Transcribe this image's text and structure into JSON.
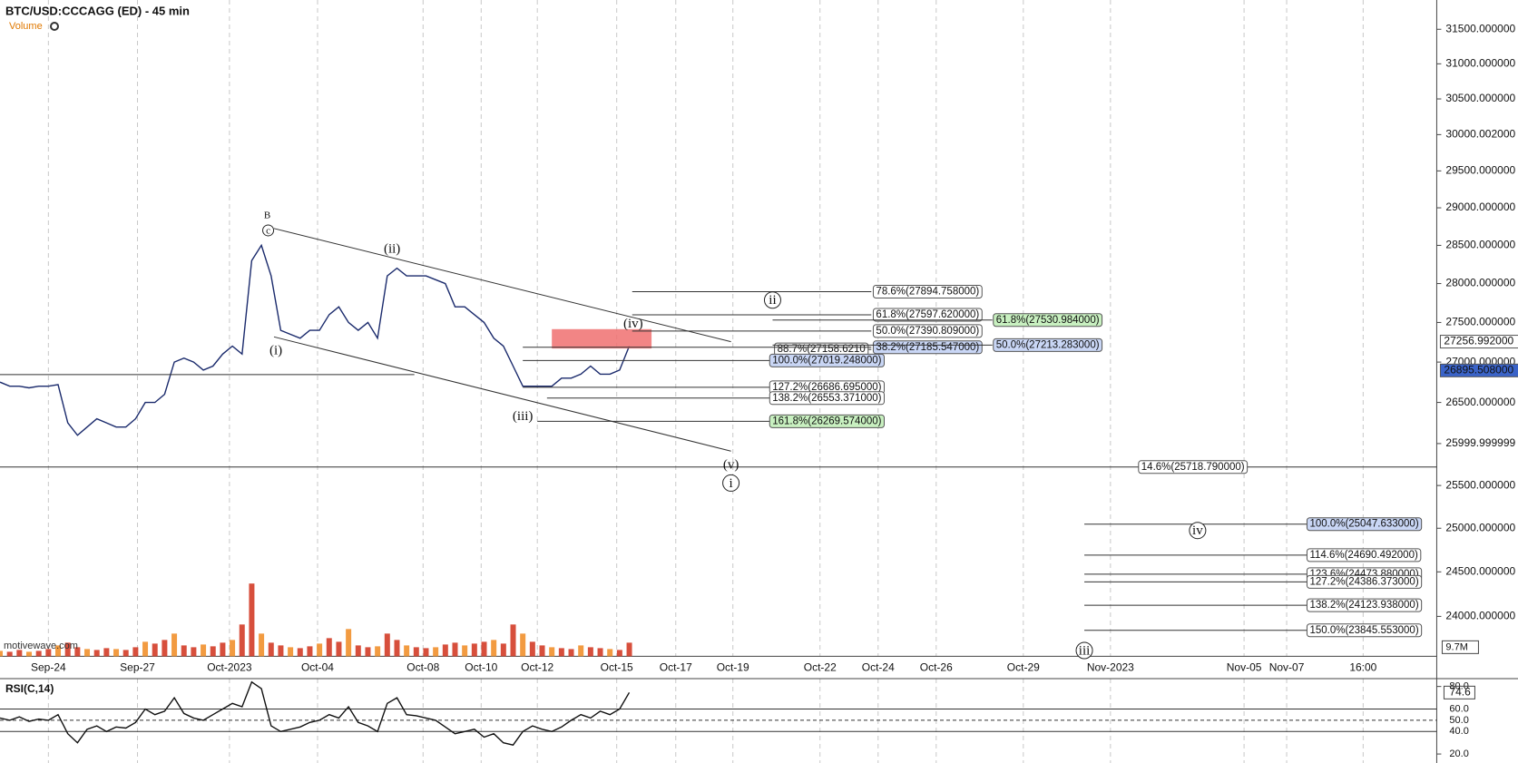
{
  "chart_data": [
    {
      "type": "line",
      "title": "BTC/USD:CCCAGG (ED) - 45 min",
      "subtitle": "Volume",
      "watermark": "motivewave.com",
      "log_scale": true,
      "color": "#1a2a6c",
      "values": [
        26750,
        26700,
        26700,
        26680,
        26700,
        26700,
        26720,
        26250,
        26100,
        26200,
        26300,
        26250,
        26200,
        26200,
        26300,
        26500,
        26500,
        26600,
        27000,
        27050,
        27000,
        26900,
        26950,
        27100,
        27200,
        27100,
        28300,
        28500,
        28100,
        27400,
        27350,
        27300,
        27400,
        27400,
        27600,
        27700,
        27500,
        27400,
        27500,
        27300,
        28100,
        28200,
        28100,
        28100,
        28100,
        28050,
        28000,
        27700,
        27700,
        27600,
        27500,
        27300,
        27200,
        26950,
        26700,
        26700,
        26700,
        26700,
        26800,
        26800,
        26850,
        26950,
        26850,
        26850,
        26900,
        27200
      ],
      "ylim": [
        23560,
        31930
      ],
      "yticks": [
        {
          "value": 24000,
          "label": "24000.000000"
        },
        {
          "value": 24500,
          "label": "24500.000000"
        },
        {
          "value": 25000,
          "label": "25000.000000"
        },
        {
          "value": 25500,
          "label": "25500.000000"
        },
        {
          "value": 26000,
          "label": "25999.999999"
        },
        {
          "value": 26500,
          "label": "26500.000000"
        },
        {
          "value": 27000,
          "label": "27000.000000"
        },
        {
          "value": 27500,
          "label": "27500.000000"
        },
        {
          "value": 28000,
          "label": "28000.000000"
        },
        {
          "value": 28500,
          "label": "28500.000000"
        },
        {
          "value": 29000,
          "label": "29000.000000"
        },
        {
          "value": 29500,
          "label": "29500.000000"
        },
        {
          "value": 30000,
          "label": "30000.002000"
        },
        {
          "value": 30500,
          "label": "30500.000000"
        },
        {
          "value": 31000,
          "label": "31000.000000"
        },
        {
          "value": 31500,
          "label": "31500.000000"
        }
      ],
      "xticks": [
        "Sep-24",
        "Sep-27",
        "Oct-2023",
        "Oct-04",
        "Oct-08",
        "Oct-10",
        "Oct-12",
        "Oct-15",
        "Oct-17",
        "Oct-19",
        "Oct-22",
        "Oct-24",
        "Oct-26",
        "Oct-29",
        "Nov-2023",
        "Nov-05",
        "Nov-07",
        "16:00"
      ],
      "price_markers": [
        {
          "value": 27256.992,
          "label": "27256.992000",
          "color": "#ffffff"
        },
        {
          "value": 26895.508,
          "label": "26895.508000",
          "color": "#3a63c8"
        }
      ],
      "fib_levels": [
        {
          "value": 27894.758,
          "label": "78.6%(27894.758000)",
          "color": "#ffffff"
        },
        {
          "value": 27597.62,
          "label": "61.8%(27597.620000)",
          "color": "#ffffff"
        },
        {
          "value": 27390.809,
          "label": "50.0%(27390.809000)",
          "color": "#ffffff"
        },
        {
          "value": 27158.621,
          "label": "88.7%(27158.6210",
          "color": "#ffffff"
        },
        {
          "value": 27185.547,
          "label": "38.2%(27185.547000)",
          "color": "#c9d6f5"
        },
        {
          "value": 27019.248,
          "label": "100.0%(27019.248000)",
          "color": "#c9d6f5"
        },
        {
          "value": 26686.695,
          "label": "127.2%(26686.695000)",
          "color": "#ffffff"
        },
        {
          "value": 26553.371,
          "label": "138.2%(26553.371000)",
          "color": "#ffffff"
        },
        {
          "value": 26269.574,
          "label": "161.8%(26269.574000)",
          "color": "#c8f0c0"
        },
        {
          "value": 27530.984,
          "label": "61.8%(27530.984000)",
          "color": "#c8f0c0"
        },
        {
          "value": 27213.283,
          "label": "50.0%(27213.283000)",
          "color": "#c9d6f5"
        },
        {
          "value": 25718.79,
          "label": "14.6%(25718.790000)",
          "color": "#ffffff"
        },
        {
          "value": 25047.633,
          "label": "100.0%(25047.633000)",
          "color": "#c9d6f5"
        },
        {
          "value": 24690.492,
          "label": "114.6%(24690.492000)",
          "color": "#ffffff"
        },
        {
          "value": 24473.88,
          "label": "123.6%(24473.880000)",
          "color": "#ffffff"
        },
        {
          "value": 24386.373,
          "label": "127.2%(24386.373000)",
          "color": "#ffffff"
        },
        {
          "value": 24123.938,
          "label": "138.2%(24123.938000)",
          "color": "#ffffff"
        },
        {
          "value": 23845.553,
          "label": "150.0%(23845.553000)",
          "color": "#ffffff"
        }
      ],
      "wave_labels": [
        {
          "label": "B",
          "circled": false
        },
        {
          "label": "c",
          "circled": true
        },
        {
          "label": "(i)",
          "circled": false
        },
        {
          "label": "(ii)",
          "circled": false
        },
        {
          "label": "(iii)",
          "circled": false
        },
        {
          "label": "(iv)",
          "circled": false
        },
        {
          "label": "(v)",
          "circled": false
        },
        {
          "label": "i",
          "circled": true
        },
        {
          "label": "ii",
          "circled": true
        },
        {
          "label": "iv",
          "circled": true
        },
        {
          "label": "iii",
          "circled": true
        }
      ],
      "volume": {
        "label": "9.7M",
        "vlim": [
          0,
          10
        ],
        "values": [
          0.6,
          0.5,
          0.7,
          0.5,
          0.6,
          0.8,
          1.2,
          1.5,
          1.0,
          0.8,
          0.7,
          0.9,
          0.8,
          0.7,
          1.0,
          1.6,
          1.4,
          1.8,
          2.5,
          1.2,
          1.0,
          1.3,
          1.1,
          1.5,
          1.8,
          3.5,
          8.0,
          2.5,
          1.5,
          1.2,
          1.0,
          0.9,
          1.1,
          1.4,
          2.0,
          1.6,
          3.0,
          1.2,
          1.0,
          1.1,
          2.5,
          1.8,
          1.2,
          1.0,
          0.9,
          1.0,
          1.3,
          1.5,
          1.2,
          1.4,
          1.6,
          1.8,
          1.4,
          3.5,
          2.5,
          1.6,
          1.2,
          1.0,
          0.9,
          0.8,
          1.2,
          1.0,
          0.9,
          0.8,
          0.7,
          1.5
        ]
      }
    },
    {
      "type": "line",
      "title": "RSI(C,14)",
      "color": "#111111",
      "values": [
        52,
        50,
        53,
        49,
        51,
        50,
        55,
        38,
        30,
        42,
        45,
        40,
        44,
        43,
        48,
        60,
        55,
        58,
        70,
        56,
        52,
        50,
        55,
        60,
        65,
        62,
        84,
        78,
        45,
        40,
        42,
        44,
        48,
        50,
        55,
        52,
        62,
        48,
        45,
        40,
        65,
        70,
        55,
        54,
        52,
        50,
        44,
        38,
        40,
        42,
        35,
        38,
        30,
        28,
        40,
        45,
        42,
        40,
        44,
        50,
        55,
        52,
        58,
        55,
        60,
        74.6
      ],
      "ylim": [
        12,
        87
      ],
      "yticks": [
        {
          "value": 20,
          "label": "20.0"
        },
        {
          "value": 40,
          "label": "40.0"
        },
        {
          "value": 50,
          "label": "50.0"
        },
        {
          "value": 60,
          "label": "60.0"
        },
        {
          "value": 80,
          "label": "80.0"
        }
      ]
    }
  ]
}
